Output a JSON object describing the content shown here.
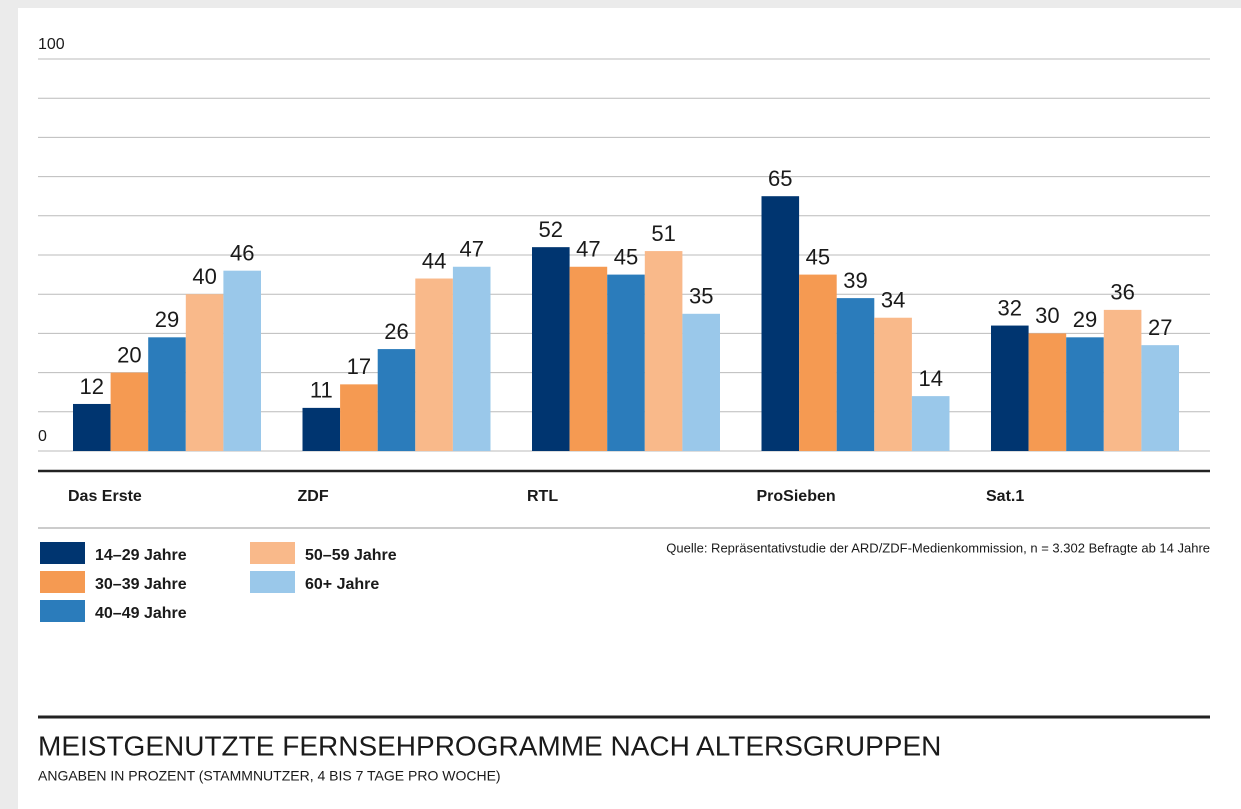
{
  "chart_data": {
    "type": "bar",
    "title": "MEISTGENUTZTE FERNSEHPROGRAMME NACH ALTERSGRUPPEN",
    "subtitle": "ANGABEN IN PROZENT (STAMMNUTZER, 4 BIS 7 TAGE PRO WOCHE)",
    "source": "Quelle: Repräsentativstudie der ARD/ZDF-Medienkommission, n = 3.302 Befragte ab 14 Jahre",
    "categories": [
      "Das Erste",
      "ZDF",
      "RTL",
      "ProSieben",
      "Sat.1"
    ],
    "series": [
      {
        "name": "14–29 Jahre",
        "color": "#003570",
        "values": [
          12,
          11,
          52,
          65,
          32
        ]
      },
      {
        "name": "30–39 Jahre",
        "color": "#f59a52",
        "values": [
          20,
          17,
          47,
          45,
          30
        ]
      },
      {
        "name": "40–49 Jahre",
        "color": "#2b7cbb",
        "values": [
          29,
          26,
          45,
          39,
          29
        ]
      },
      {
        "name": "50–59 Jahre",
        "color": "#f9b98a",
        "values": [
          40,
          44,
          51,
          34,
          36
        ]
      },
      {
        "name": "60+ Jahre",
        "color": "#9ac8ea",
        "values": [
          46,
          47,
          35,
          14,
          27
        ]
      }
    ],
    "ylim": [
      0,
      100
    ],
    "yticks": [
      0,
      100
    ],
    "minor_yticks": [
      10,
      20,
      30,
      40,
      50,
      60,
      70,
      80,
      90
    ],
    "grid": true
  }
}
